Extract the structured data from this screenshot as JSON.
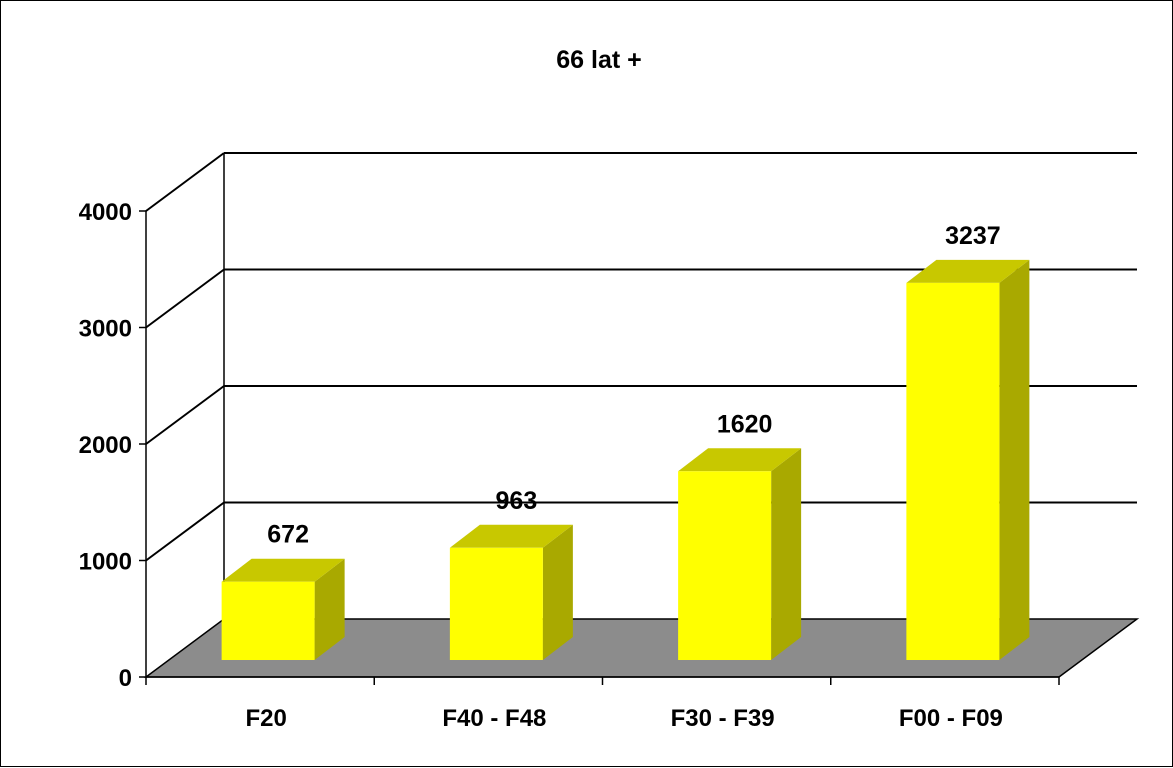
{
  "chart_data": {
    "type": "bar",
    "title": "66 lat +",
    "categories": [
      "F20",
      "F40 - F48",
      "F30 - F39",
      "F00 - F09"
    ],
    "values": [
      672,
      963,
      1620,
      3237
    ],
    "ylim": [
      0,
      4000
    ],
    "yticks": [
      0,
      1000,
      2000,
      3000,
      4000
    ],
    "ytick_labels": [
      "0",
      "1000",
      "2000",
      "3000",
      "4000"
    ],
    "grid": true,
    "legend": "none",
    "style": "3d",
    "colors": {
      "bar_front": "#ffff00",
      "bar_side": "#a9a900",
      "bar_top": "#c8c800",
      "floor": "#8c8c8c"
    }
  }
}
